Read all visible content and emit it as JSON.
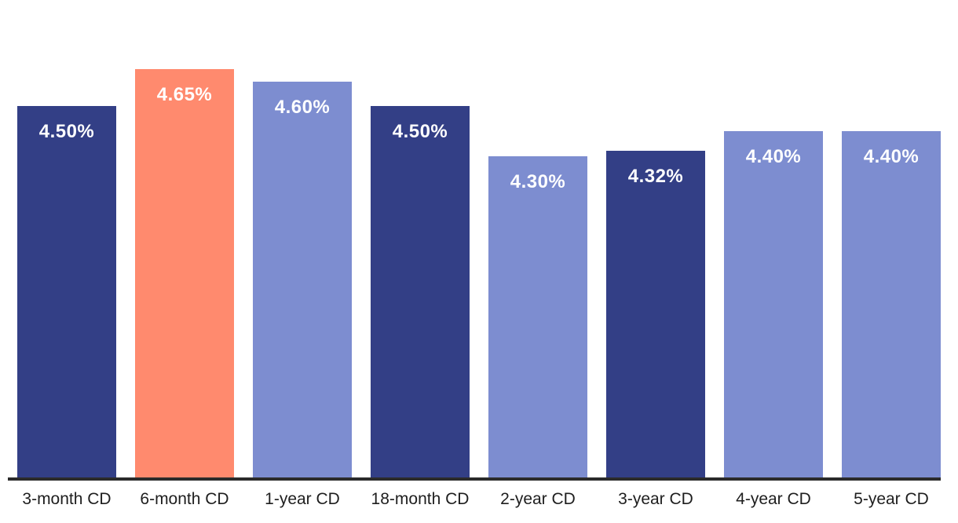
{
  "chart_data": {
    "type": "bar",
    "categories": [
      "3-month CD",
      "6-month CD",
      "1-year CD",
      "18-month CD",
      "2-year CD",
      "3-year CD",
      "4-year CD",
      "5-year CD"
    ],
    "values": [
      4.5,
      4.65,
      4.6,
      4.5,
      4.3,
      4.32,
      4.4,
      4.4
    ],
    "value_labels": [
      "4.50%",
      "4.65%",
      "4.60%",
      "4.50%",
      "4.30%",
      "4.32%",
      "4.40%",
      "4.40%"
    ],
    "bar_colors": [
      "#333F86",
      "#FF8A6E",
      "#7D8DD0",
      "#333F86",
      "#7D8DD0",
      "#333F86",
      "#7D8DD0",
      "#7D8DD0"
    ],
    "title": "",
    "xlabel": "",
    "ylabel": "",
    "ylim": [
      3.0,
      4.65
    ],
    "grid": false,
    "legend": false,
    "colors": {
      "dark_bar": "#333F86",
      "highlight_bar": "#FF8A6E",
      "light_bar": "#7D8DD0",
      "axis_line": "#2B2B2B",
      "tick_label_text": "#1E1E1E",
      "value_label_text": "#FFFFFF",
      "background": "#FFFFFF"
    }
  }
}
